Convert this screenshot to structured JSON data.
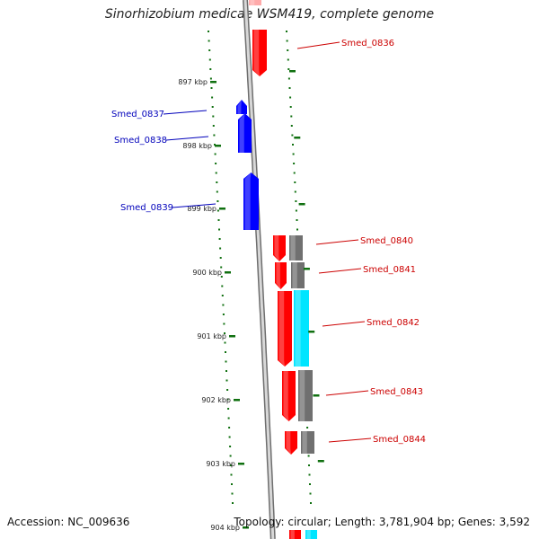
{
  "title": "Sinorhizobium medicae WSM419, complete genome",
  "footer": {
    "accession": "Accession: NC_009636",
    "summary": "Topology: circular; Length: 3,781,904 bp; Genes: 3,592"
  },
  "colors": {
    "backbone": "#9a9a9a",
    "forward_cds": "#ff0000",
    "reverse_cds": "#0000ff",
    "gray_feature": "#707070",
    "cyan_feature": "#00e5ff",
    "tick_marks": "#107010",
    "label_forward": "#cc0000",
    "label_reverse": "#0000bb"
  },
  "scale": {
    "unit": "kbp",
    "tick_labels": [
      "897 kbp",
      "898 kbp",
      "899 kbp",
      "900 kbp",
      "901 kbp",
      "902 kbp",
      "903 kbp",
      "904 kbp"
    ]
  },
  "genes": [
    {
      "id": "Smed_0836",
      "strand": "forward"
    },
    {
      "id": "Smed_0837",
      "strand": "reverse"
    },
    {
      "id": "Smed_0838",
      "strand": "reverse"
    },
    {
      "id": "Smed_0839",
      "strand": "reverse"
    },
    {
      "id": "Smed_0840",
      "strand": "forward"
    },
    {
      "id": "Smed_0841",
      "strand": "forward"
    },
    {
      "id": "Smed_0842",
      "strand": "forward"
    },
    {
      "id": "Smed_0843",
      "strand": "forward"
    },
    {
      "id": "Smed_0844",
      "strand": "forward"
    }
  ]
}
